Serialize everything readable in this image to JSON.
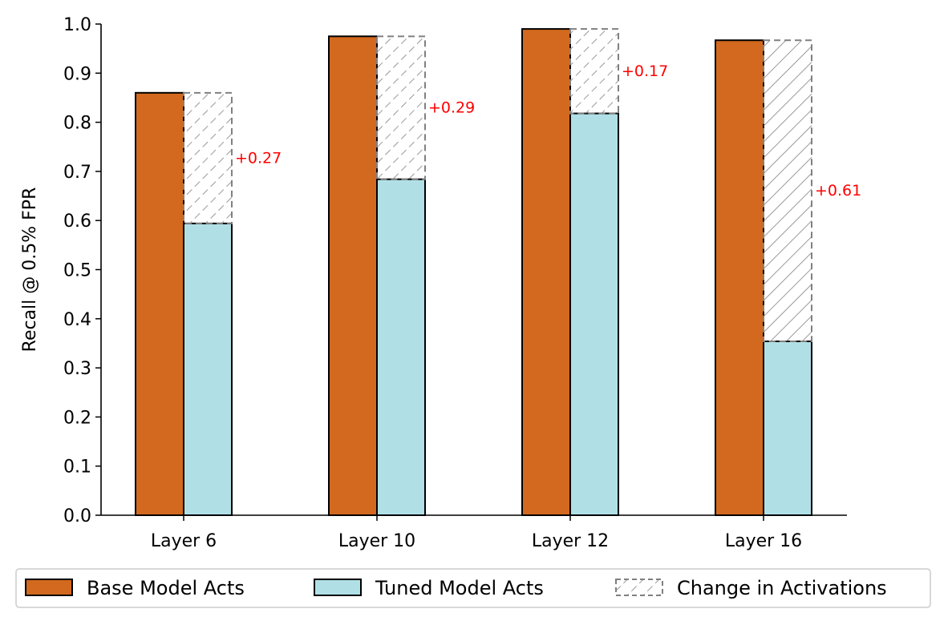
{
  "chart_data": {
    "type": "bar",
    "ylabel": "Recall @ 0.5% FPR",
    "ylim": [
      0,
      1.0
    ],
    "yticks": [
      "0.0",
      "0.1",
      "0.2",
      "0.3",
      "0.4",
      "0.5",
      "0.6",
      "0.7",
      "0.8",
      "0.9",
      "1.0"
    ],
    "categories": [
      "Layer 6",
      "Layer 10",
      "Layer 12",
      "Layer 16"
    ],
    "series": [
      {
        "name": "Base Model Acts",
        "color": "#d2691e",
        "values": [
          0.86,
          0.975,
          0.99,
          0.967
        ]
      },
      {
        "name": "Tuned Model Acts",
        "color": "#b0e0e6",
        "values": [
          0.594,
          0.684,
          0.818,
          0.354
        ]
      }
    ],
    "change": {
      "name": "Change in Activations",
      "color": "#808080",
      "labels": [
        "+0.27",
        "+0.29",
        "+0.17",
        "+0.61"
      ],
      "label_color": "#ff0000"
    },
    "grid": false,
    "legend_position": "bottom"
  }
}
